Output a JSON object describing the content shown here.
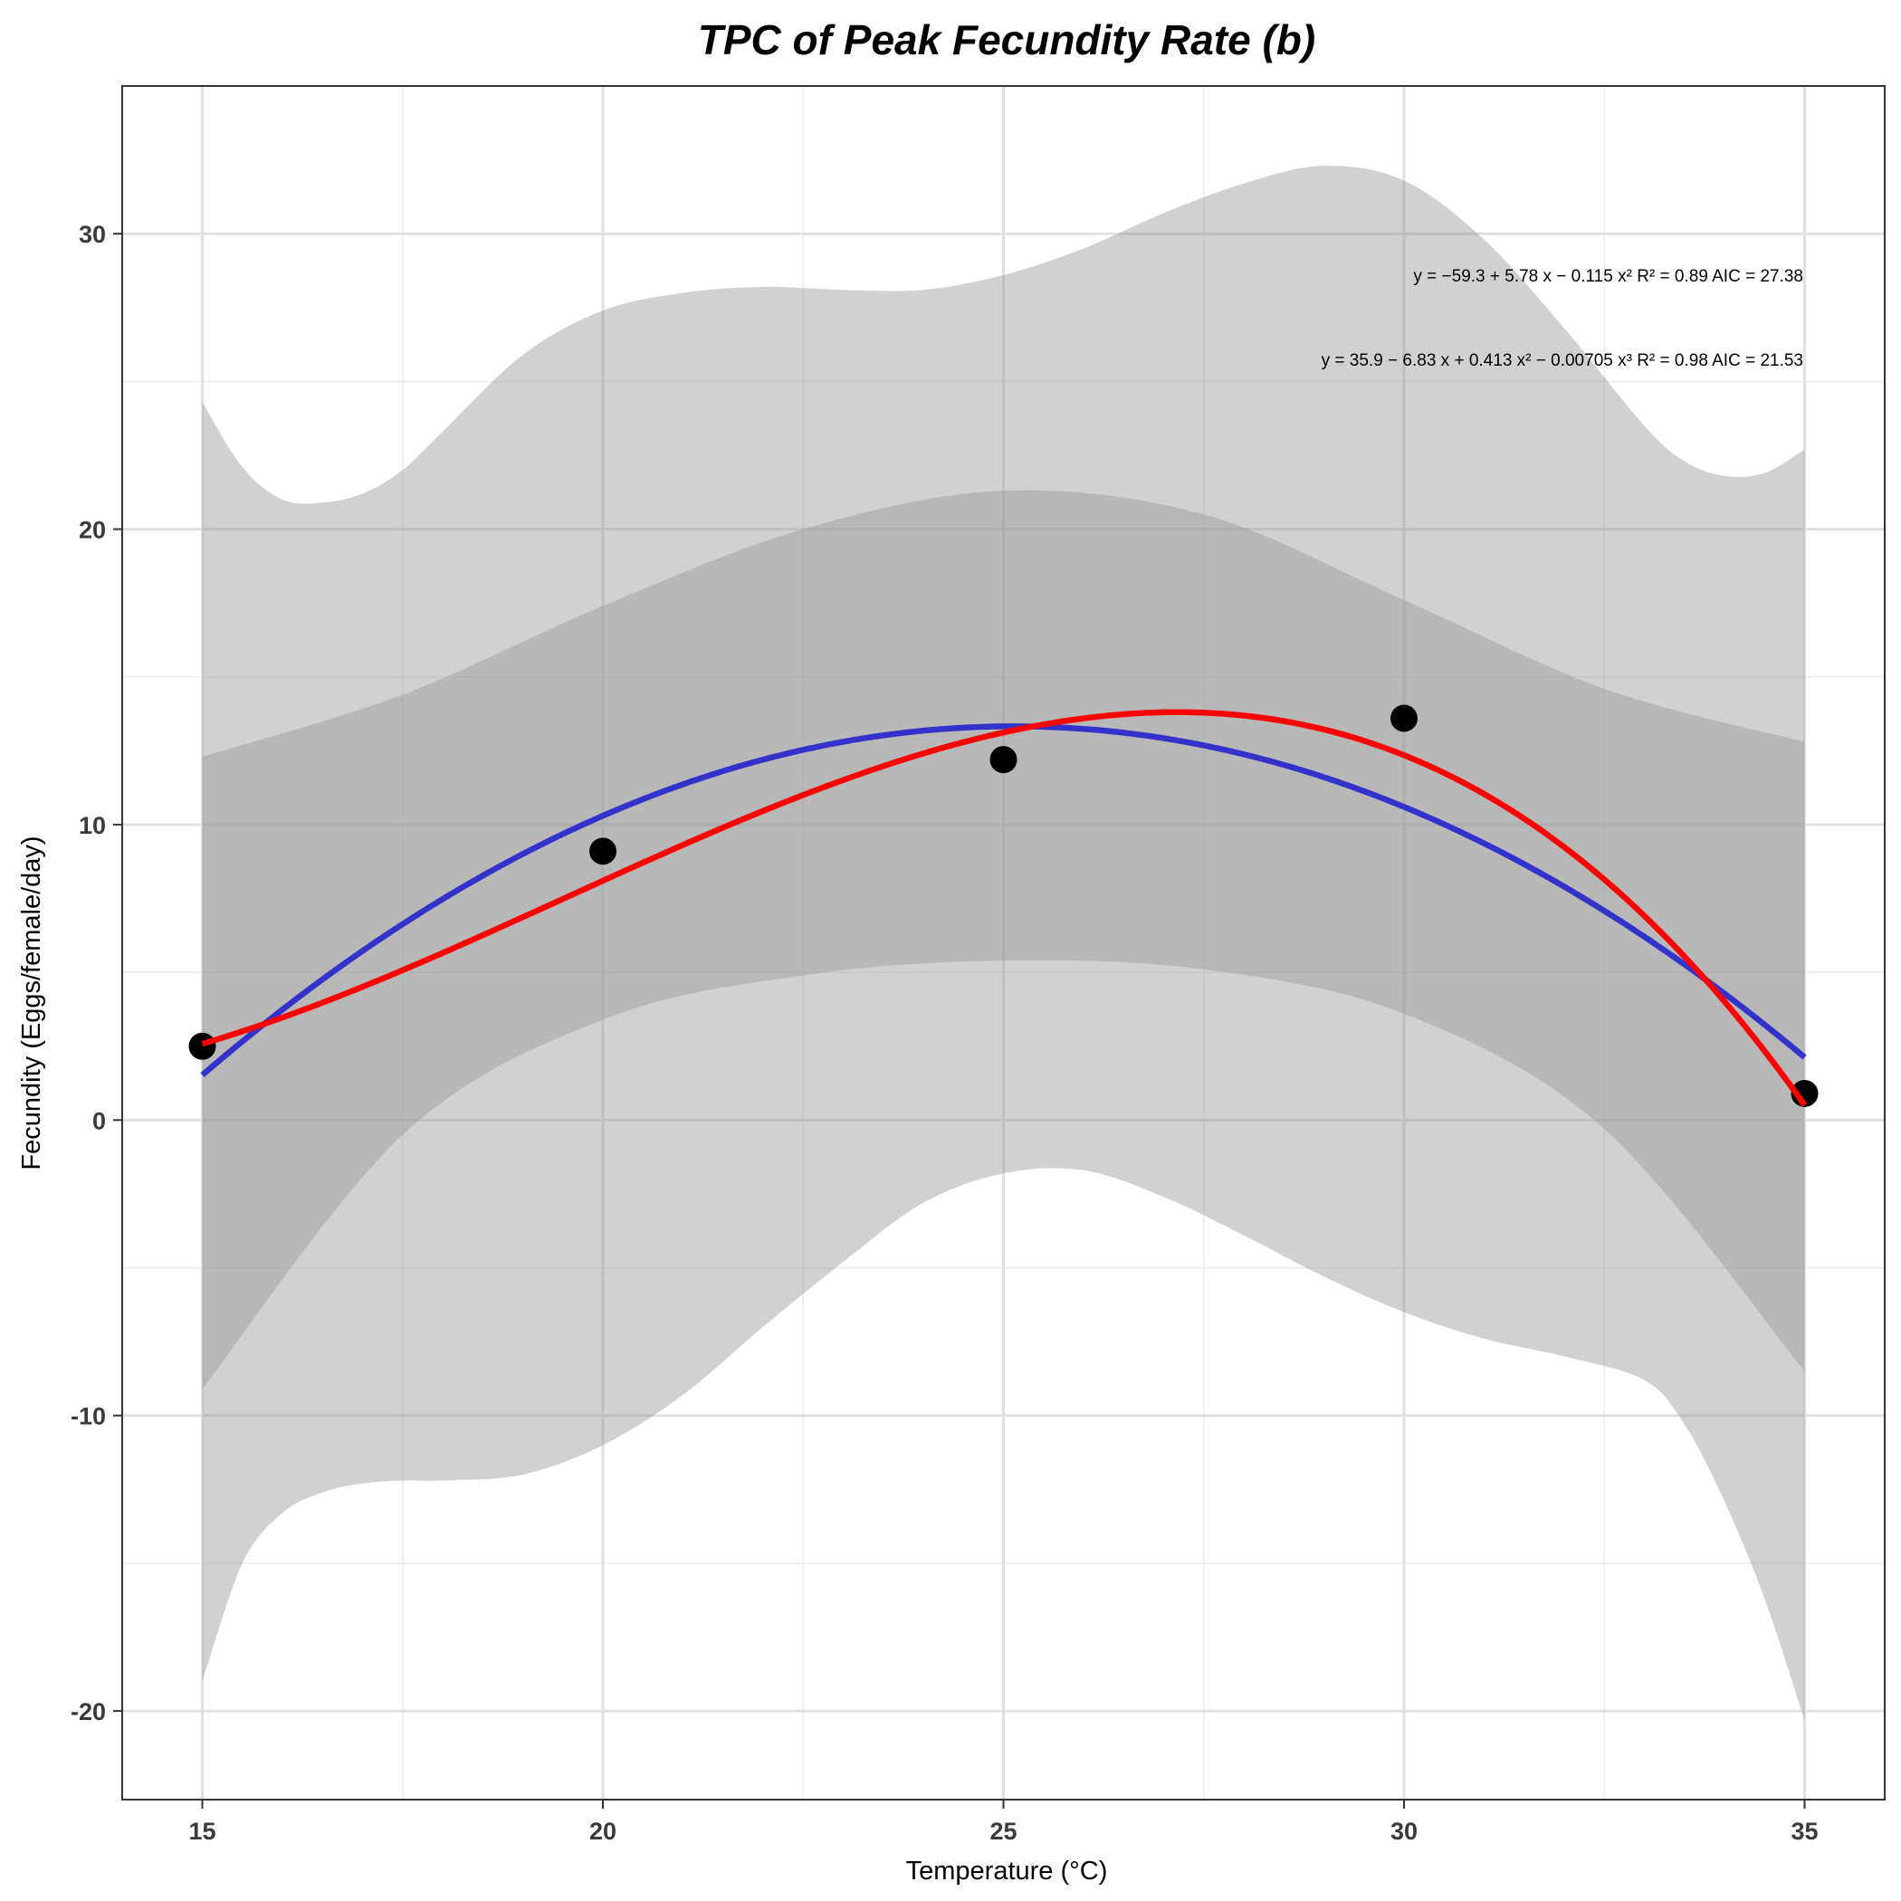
{
  "chart_data": {
    "type": "scatter",
    "title": "TPC of Peak Fecundity Rate (b)",
    "xlabel": "Temperature (°C)",
    "ylabel": "Fecundity (Eggs/female/day)",
    "xlim": [
      14,
      36
    ],
    "ylim": [
      -23,
      35
    ],
    "x_ticks": [
      15,
      20,
      25,
      30,
      35
    ],
    "y_ticks": [
      -20,
      -10,
      0,
      10,
      20,
      30
    ],
    "x_tick_labels": [
      "15",
      "20",
      "25",
      "30",
      "35"
    ],
    "y_tick_labels": [
      "-20",
      "-10",
      "0",
      "10",
      "20",
      "30"
    ],
    "grid": true,
    "points": {
      "x": [
        15,
        20,
        25,
        30,
        35
      ],
      "y": [
        2.5,
        9.1,
        12.2,
        13.6,
        0.9
      ],
      "color": "#000000"
    },
    "series": [
      {
        "fit": "quadratic",
        "coefficients": [
          -59.3,
          5.78,
          -0.115
        ],
        "color": "#3333cc",
        "equation": "y = −59.3 + 5.78 x − 0.115 x²   R² = 0.89   AIC = 27.38",
        "ci_inner": {
          "x": [
            15,
            17.5,
            20,
            22.5,
            25,
            27.5,
            30,
            32.5,
            35
          ],
          "lower": [
            -9.1,
            -0.5,
            3.4,
            4.9,
            5.4,
            5.1,
            3.6,
            -0.3,
            -8.5
          ],
          "upper": [
            12.3,
            14.4,
            17.4,
            20.0,
            21.3,
            20.5,
            17.6,
            14.6,
            12.8
          ]
        }
      },
      {
        "fit": "cubic",
        "coefficients": [
          35.9,
          -6.83,
          0.413,
          -0.00705
        ],
        "color": "#ff0000",
        "equation": "y = 35.9 − 6.83 x + 0.413 x² − 0.00705 x³   R² = 0.98   AIC = 21.53",
        "ci_outer": {
          "x": [
            15,
            15.5,
            16,
            16.5,
            17,
            17.5,
            18,
            19,
            20,
            21,
            22,
            23,
            24,
            25,
            26,
            27,
            28,
            29,
            30,
            31,
            32,
            33,
            33.5,
            34,
            34.5,
            35
          ],
          "lower": [
            -19.0,
            -15.0,
            -13.3,
            -12.6,
            -12.3,
            -12.2,
            -12.2,
            -12.0,
            -11.0,
            -9.3,
            -7.0,
            -4.8,
            -2.8,
            -1.8,
            -1.7,
            -2.6,
            -3.9,
            -5.3,
            -6.5,
            -7.4,
            -8.0,
            -8.8,
            -10.3,
            -12.9,
            -16.2,
            -20.3
          ],
          "upper": [
            24.3,
            22.1,
            21.0,
            20.9,
            21.2,
            22.0,
            23.3,
            25.9,
            27.4,
            28.0,
            28.2,
            28.1,
            28.1,
            28.6,
            29.5,
            30.7,
            31.7,
            32.3,
            31.8,
            29.8,
            26.8,
            23.5,
            22.3,
            21.8,
            21.9,
            22.7
          ]
        }
      }
    ]
  }
}
